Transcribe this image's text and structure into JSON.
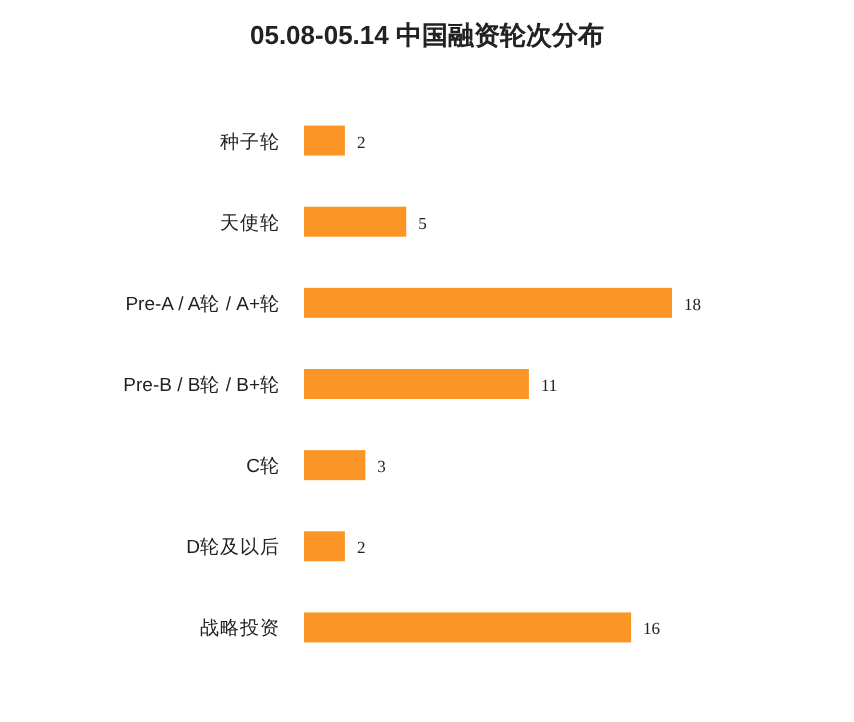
{
  "chart_data": {
    "type": "bar",
    "orientation": "horizontal",
    "title": "05.08-05.14 中国融资轮次分布",
    "categories": [
      "种子轮",
      "天使轮",
      "Pre-A / A轮 / A+轮",
      "Pre-B / B轮 / B+轮",
      "C轮",
      "D轮及以后",
      "战略投资"
    ],
    "values": [
      2,
      5,
      18,
      11,
      3,
      2,
      16
    ],
    "color": "#fb9526",
    "data_labels": true
  }
}
